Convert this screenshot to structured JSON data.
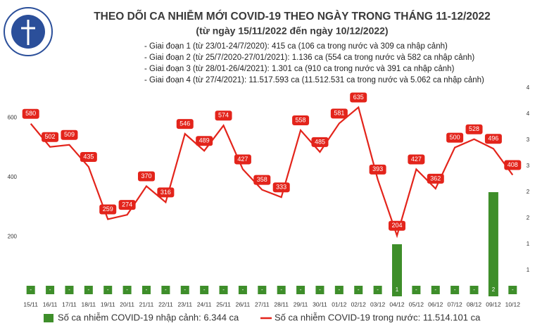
{
  "chart_data": {
    "type": "bar-line",
    "title": "THEO DÕI CA NHIỄM MỚI COVID-19 THEO NGÀY TRONG THÁNG 11-12/2022",
    "subtitle": "(từ ngày 15/11/2022 đến ngày 10/12/2022)",
    "notes": [
      "- Giai đoạn 1 (từ 23/01-24/7/2020): 415 ca (106 ca trong nước và 309 ca nhập cảnh)",
      "- Giai đoạn 2 (từ 25/7/2020-27/01/2021): 1.136 ca (554 ca trong nước và 582 ca nhập cảnh)",
      "- Giai đoạn 3 (từ 28/01-26/4/2021): 1.301 ca (910 ca trong nước và 391 ca nhập cảnh)",
      "- Giai đoạn 4 (từ 27/4/2021): 11.517.593 ca (11.512.531 ca trong nước và 5.062 ca nhập cảnh)"
    ],
    "categories": [
      "15/11",
      "16/11",
      "17/11",
      "18/11",
      "19/11",
      "20/11",
      "21/11",
      "22/11",
      "23/11",
      "24/11",
      "25/11",
      "26/11",
      "27/11",
      "28/11",
      "29/11",
      "30/11",
      "01/12",
      "02/12",
      "03/12",
      "04/12",
      "05/12",
      "06/12",
      "07/12",
      "08/12",
      "09/12",
      "10/12"
    ],
    "series": [
      {
        "name": "Số ca nhiễm COVID-19 nhập cảnh: 6.344 ca",
        "type": "bar",
        "axis": "y2",
        "color": "#3e8e2a",
        "values": [
          0,
          0,
          0,
          0,
          0,
          0,
          0,
          0,
          0,
          0,
          0,
          0,
          0,
          0,
          0,
          0,
          0,
          0,
          0,
          1,
          0,
          0,
          0,
          0,
          2,
          0
        ],
        "value_labels": [
          "-",
          "-",
          "-",
          "-",
          "-",
          "-",
          "-",
          "-",
          "-",
          "-",
          "-",
          "-",
          "-",
          "-",
          "-",
          "-",
          "-",
          "-",
          "-",
          "1",
          "-",
          "-",
          "-",
          "-",
          "2",
          "-"
        ]
      },
      {
        "name": "Số ca nhiễm COVID-19 trong nước: 11.514.101 ca",
        "type": "line",
        "color": "#e3241b",
        "values": [
          580,
          502,
          509,
          435,
          259,
          274,
          370,
          316,
          546,
          489,
          574,
          427,
          358,
          333,
          558,
          485,
          581,
          635,
          393,
          204,
          427,
          362,
          500,
          528,
          496,
          408
        ]
      }
    ],
    "ylim": [
      0,
      700
    ],
    "yticks": [
      200,
      400,
      600
    ],
    "y2lim": [
      0,
      4
    ],
    "y2ticks": [
      {
        "value": 0.5,
        "label": "1"
      },
      {
        "value": 1,
        "label": "1"
      },
      {
        "value": 1.5,
        "label": "2"
      },
      {
        "value": 2,
        "label": "2"
      },
      {
        "value": 2.5,
        "label": "3"
      },
      {
        "value": 3,
        "label": "3"
      },
      {
        "value": 3.5,
        "label": "4"
      },
      {
        "value": 4,
        "label": "4"
      }
    ]
  }
}
